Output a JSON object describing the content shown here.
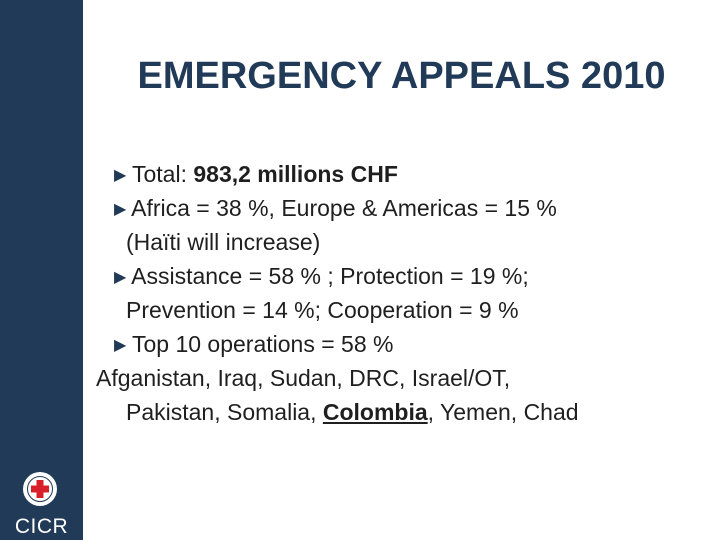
{
  "slide": {
    "title": "EMERGENCY APPEALS 2010",
    "bullets": {
      "total_label": "Total:  ",
      "total_value": "983,2 millions CHF",
      "regions": "Africa = 38 %, Europe & Americas = 15 %",
      "regions_cont": "(Haïti will increase)",
      "programmes": "Assistance = 58 % ; Protection = 19 %;",
      "programmes_cont": "Prevention = 14 %;  Cooperation = 9 %",
      "top10": "Top 10 operations = 58 %"
    },
    "countries_line1": "Afganistan, Iraq, Sudan, DRC, Israel/OT,",
    "countries_line2_pre": "Pakistan, Somalia, ",
    "countries_line2_emph": "Colombia",
    "countries_line2_post": ", Yemen, Chad"
  },
  "branding": {
    "logo_text": "CICR",
    "sidebar_color": "#213a57",
    "emblem_icon": "red-cross-emblem-icon",
    "bullet_icon": "triangle-bullet-icon"
  }
}
